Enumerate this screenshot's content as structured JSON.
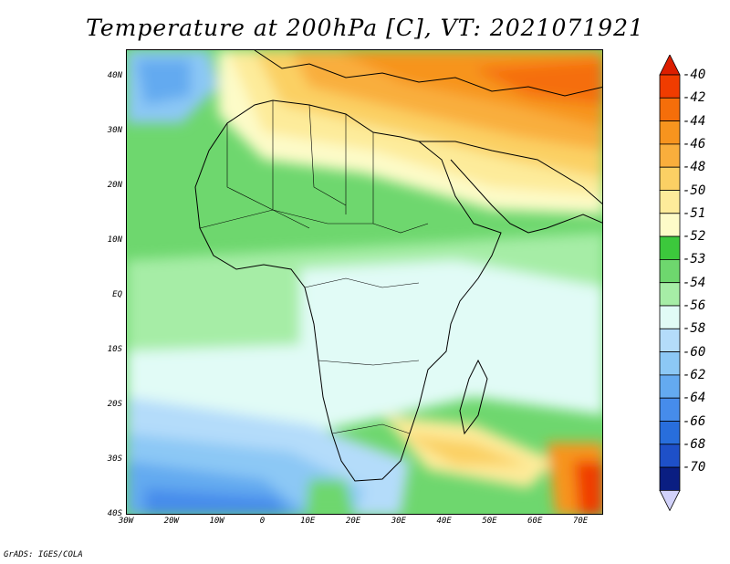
{
  "title": "Temperature at 200hPa [C], VT: 2021071921",
  "credit": "GrADS: IGES/COLA",
  "axes": {
    "lat_ticks": [
      {
        "value": 40,
        "label": "40N"
      },
      {
        "value": 30,
        "label": "30N"
      },
      {
        "value": 20,
        "label": "20N"
      },
      {
        "value": 10,
        "label": "10N"
      },
      {
        "value": 0,
        "label": "EQ"
      },
      {
        "value": -10,
        "label": "10S"
      },
      {
        "value": -20,
        "label": "20S"
      },
      {
        "value": -30,
        "label": "30S"
      },
      {
        "value": -40,
        "label": "40S"
      }
    ],
    "lon_ticks": [
      {
        "value": -30,
        "label": "30W"
      },
      {
        "value": -20,
        "label": "20W"
      },
      {
        "value": -10,
        "label": "10W"
      },
      {
        "value": 0,
        "label": "0"
      },
      {
        "value": 10,
        "label": "10E"
      },
      {
        "value": 20,
        "label": "20E"
      },
      {
        "value": 30,
        "label": "30E"
      },
      {
        "value": 40,
        "label": "40E"
      },
      {
        "value": 50,
        "label": "50E"
      },
      {
        "value": 60,
        "label": "60E"
      },
      {
        "value": 70,
        "label": "70E"
      }
    ],
    "lon_range": [
      -30,
      75
    ],
    "lat_range": [
      -40,
      45
    ]
  },
  "colorbar": {
    "levels": [
      {
        "label": "-40",
        "color": "#f03c00"
      },
      {
        "label": "-42",
        "color": "#f56e0a"
      },
      {
        "label": "-44",
        "color": "#f7941e"
      },
      {
        "label": "-46",
        "color": "#f9ae3c"
      },
      {
        "label": "-48",
        "color": "#fbd064"
      },
      {
        "label": "-50",
        "color": "#fdeb9a"
      },
      {
        "label": "-51",
        "color": "#fdfbc8"
      },
      {
        "label": "-52",
        "color": "#3cc83c"
      },
      {
        "label": "-53",
        "color": "#6ed76e"
      },
      {
        "label": "-54",
        "color": "#a6eda6"
      },
      {
        "label": "-56",
        "color": "#e1fbf6"
      },
      {
        "label": "-58",
        "color": "#b4dcfa"
      },
      {
        "label": "-60",
        "color": "#8cc8f5"
      },
      {
        "label": "-62",
        "color": "#64aaf0"
      },
      {
        "label": "-64",
        "color": "#468ceb"
      },
      {
        "label": "-66",
        "color": "#286edc"
      },
      {
        "label": "-68",
        "color": "#1e50c8"
      },
      {
        "label": "-70",
        "color": "#0a1e82"
      }
    ],
    "top_color": "#dc1e00",
    "bottom_color": "#d2d2fa"
  }
}
